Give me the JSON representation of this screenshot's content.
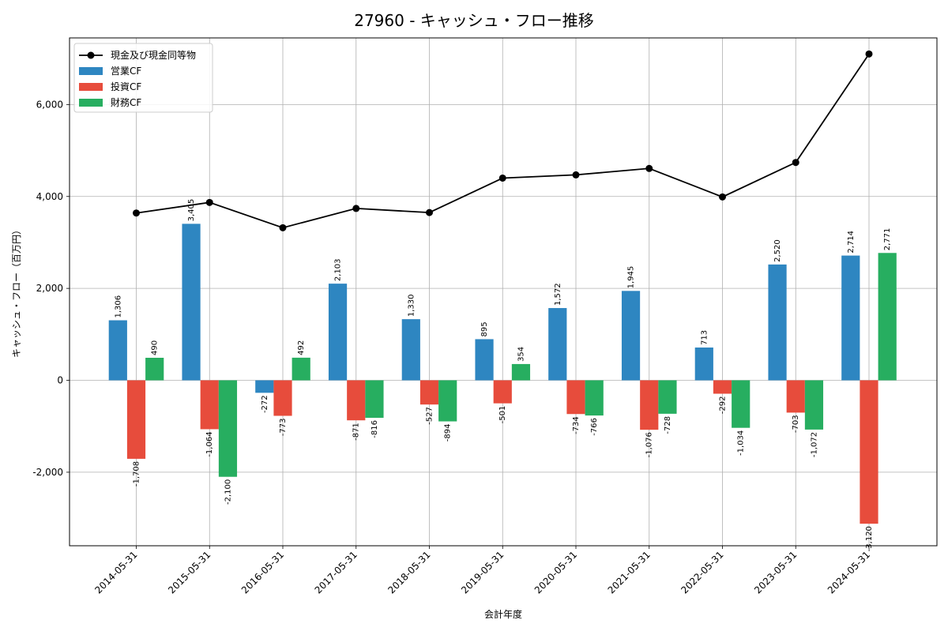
{
  "chart_data": {
    "type": "bar",
    "title": "27960 - キャッシュ・フロー推移",
    "xlabel": "会計年度",
    "ylabel": "キャッシュ・フロー（百万円）",
    "ylim": [
      -3600,
      7450
    ],
    "yticks": [
      -2000,
      0,
      2000,
      4000,
      6000
    ],
    "ytick_labels": [
      "-2,000",
      "0",
      "2,000",
      "4,000",
      "6,000"
    ],
    "grid": true,
    "legend_position": "top-left",
    "categories": [
      "2014-05-31",
      "2015-05-31",
      "2016-05-31",
      "2017-05-31",
      "2018-05-31",
      "2019-05-31",
      "2020-05-31",
      "2021-05-31",
      "2022-05-31",
      "2023-05-31",
      "2024-05-31"
    ],
    "series": [
      {
        "name": "営業CF",
        "kind": "bar",
        "color": "#2e86c1",
        "values": [
          1306,
          3405,
          -272,
          2103,
          1330,
          895,
          1572,
          1945,
          713,
          2520,
          2714
        ],
        "labels": [
          "1,306",
          "3,405",
          "-272",
          "2,103",
          "1,330",
          "895",
          "1,572",
          "1,945",
          "713",
          "2,520",
          "2,714"
        ]
      },
      {
        "name": "投資CF",
        "kind": "bar",
        "color": "#e74c3c",
        "values": [
          -1708,
          -1064,
          -773,
          -871,
          -527,
          -501,
          -734,
          -1076,
          -292,
          -703,
          -3120
        ],
        "labels": [
          "-1,708",
          "-1,064",
          "-773",
          "-871",
          "-527",
          "-501",
          "-734",
          "-1,076",
          "-292",
          "-703",
          "-3,120"
        ]
      },
      {
        "name": "財務CF",
        "kind": "bar",
        "color": "#27ae60",
        "values": [
          490,
          -2100,
          492,
          -816,
          -894,
          354,
          -766,
          -728,
          -1034,
          -1072,
          2771
        ],
        "labels": [
          "490",
          "-2,100",
          "492",
          "-816",
          "-894",
          "354",
          "-766",
          "-728",
          "-1,034",
          "-1,072",
          "2,771"
        ]
      },
      {
        "name": "現金及び現金同等物",
        "kind": "line",
        "color": "#000000",
        "values": [
          3640,
          3870,
          3320,
          3740,
          3650,
          4400,
          4470,
          4610,
          3990,
          4740,
          7100
        ]
      }
    ]
  }
}
